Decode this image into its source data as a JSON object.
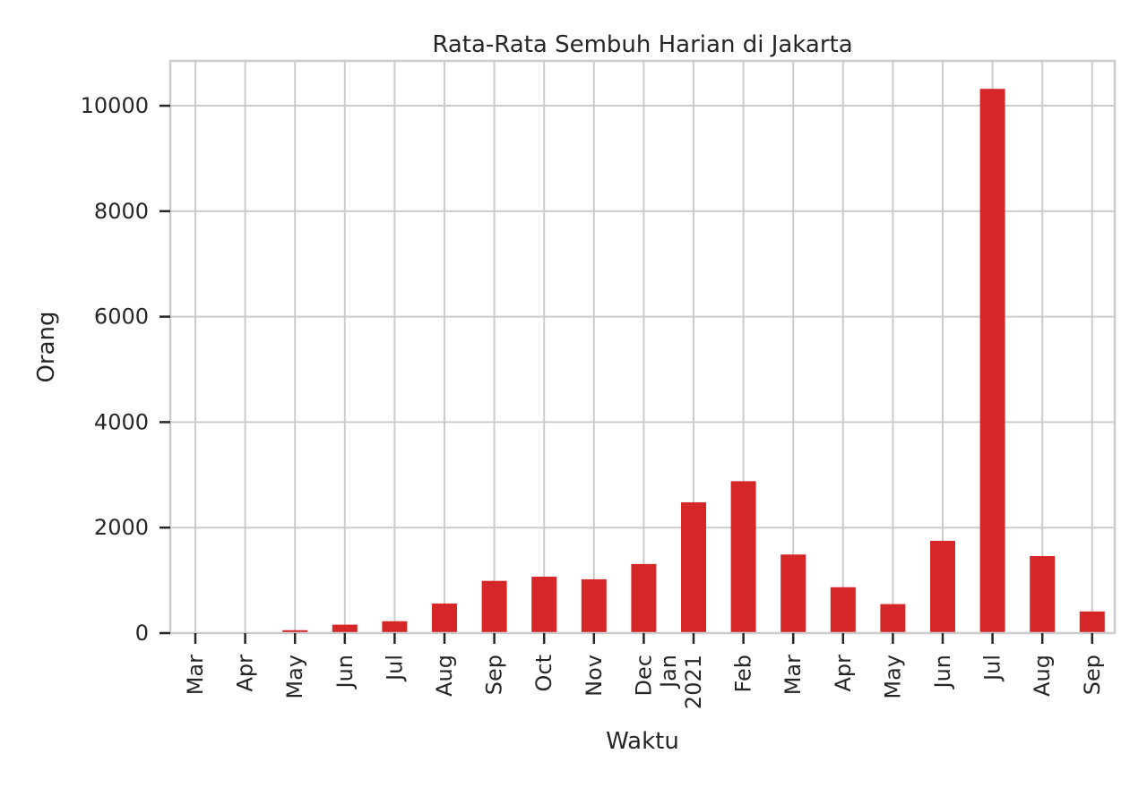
{
  "chart_data": {
    "type": "bar",
    "title": "Rata-Rata Sembuh Harian di Jakarta",
    "xlabel": "Waktu",
    "ylabel": "Orang",
    "categories": [
      "Mar",
      "Apr",
      "May",
      "Jun",
      "Jul",
      "Aug",
      "Sep",
      "Oct",
      "Nov",
      "Dec",
      "Jan\n2021",
      "Feb",
      "Mar",
      "Apr",
      "May",
      "Jun",
      "Jul",
      "Aug",
      "Sep"
    ],
    "values": [
      4,
      10,
      55,
      160,
      225,
      560,
      990,
      1070,
      1020,
      1310,
      2480,
      2880,
      1490,
      870,
      550,
      1750,
      10320,
      1460,
      410
    ],
    "yticks": [
      0,
      2000,
      4000,
      6000,
      8000,
      10000
    ],
    "ylim": [
      0,
      10850
    ],
    "grid": true,
    "bar_color": "#d62728",
    "grid_color": "#cccccc",
    "axis_color": "#cccccc"
  }
}
